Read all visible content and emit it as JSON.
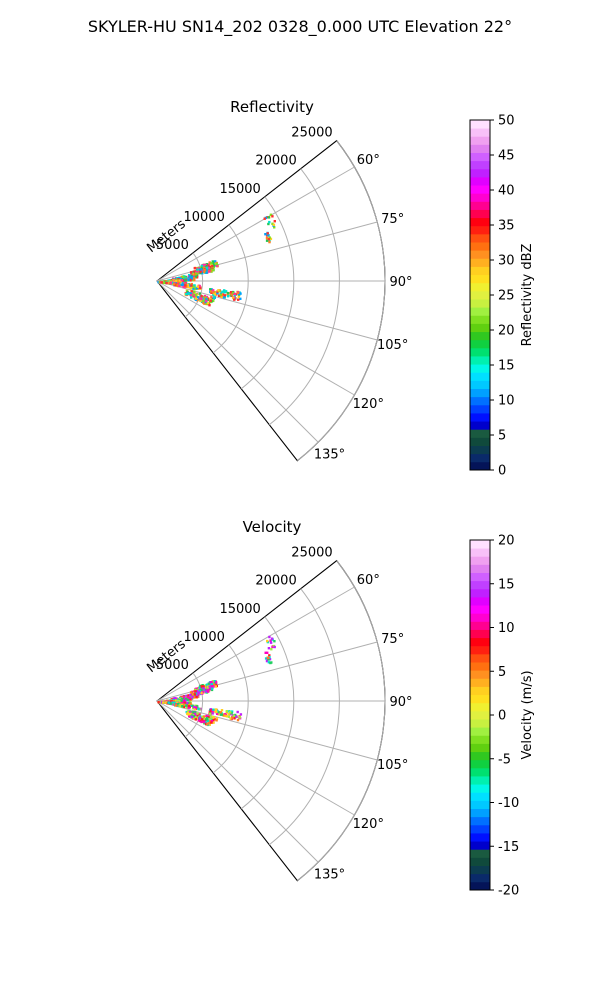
{
  "figure": {
    "suptitle": "SKYLER-HU  SN14_202  0328_0.000 UTC Elevation 22°"
  },
  "chart_data": [
    {
      "type": "polar-sector",
      "title": "Reflectivity",
      "range_label": "Meters",
      "range_ticks": [
        5000,
        10000,
        15000,
        20000,
        25000
      ],
      "range_max": 25000,
      "azimuth_ticks": [
        "60°",
        "75°",
        "90°",
        "105°",
        "120°",
        "135°"
      ],
      "azimuth_range_deg": [
        52,
        142
      ],
      "grid": true,
      "colorbar": {
        "label": "Reflectivity dBZ",
        "min": 0,
        "max": 50,
        "ticks": [
          "0",
          "5",
          "10",
          "15",
          "20",
          "25",
          "30",
          "35",
          "40",
          "45",
          "50"
        ],
        "colors": [
          "#041458",
          "#0a2a6a",
          "#0c3c50",
          "#104a3c",
          "#1a5a40",
          "#0000cc",
          "#0010ff",
          "#0040ff",
          "#0070ff",
          "#00a0ff",
          "#00c8ff",
          "#00e0ff",
          "#00f8e8",
          "#00f0b0",
          "#00e070",
          "#10d040",
          "#30c820",
          "#60d010",
          "#80e020",
          "#a0f040",
          "#c8f040",
          "#e0f040",
          "#f0f030",
          "#ffe020",
          "#ffd020",
          "#ffb020",
          "#ff9020",
          "#ff7010",
          "#ff5010",
          "#ff2010",
          "#ff0010",
          "#ff0050",
          "#ff0090",
          "#ff00d0",
          "#ff00ff",
          "#e000ff",
          "#c020ff",
          "#c040ff",
          "#d060ff",
          "#e080f0",
          "#f0a0f0",
          "#f8c0f8",
          "#ffe0ff"
        ]
      },
      "echo_palette": [
        "#ff3030",
        "#ffd020",
        "#80e020",
        "#20c850",
        "#00e0d0",
        "#00a0ff",
        "#ff8020",
        "#ff30a0"
      ]
    },
    {
      "type": "polar-sector",
      "title": "Velocity",
      "range_label": "Meters",
      "range_ticks": [
        5000,
        10000,
        15000,
        20000,
        25000
      ],
      "range_max": 25000,
      "azimuth_ticks": [
        "60°",
        "75°",
        "90°",
        "105°",
        "120°",
        "135°"
      ],
      "azimuth_range_deg": [
        52,
        142
      ],
      "grid": true,
      "colorbar": {
        "label": "Velocity (m/s)",
        "min": -20,
        "max": 20,
        "ticks": [
          "-20",
          "-15",
          "-10",
          "-5",
          "0",
          "5",
          "10",
          "15",
          "20"
        ],
        "colors": [
          "#041458",
          "#0a2a6a",
          "#0c3c50",
          "#104a3c",
          "#1a5a40",
          "#0000cc",
          "#0010ff",
          "#0040ff",
          "#0070ff",
          "#00a0ff",
          "#00c8ff",
          "#00e0ff",
          "#00f8e8",
          "#00f0b0",
          "#00e070",
          "#10d040",
          "#30c820",
          "#60d010",
          "#80e020",
          "#a0f040",
          "#c8f040",
          "#e0f040",
          "#f0f030",
          "#ffe020",
          "#ffd020",
          "#ffb020",
          "#ff9020",
          "#ff7010",
          "#ff5010",
          "#ff2010",
          "#ff0010",
          "#ff0050",
          "#ff0090",
          "#ff00d0",
          "#ff00ff",
          "#e000ff",
          "#c020ff",
          "#c040ff",
          "#d060ff",
          "#e080f0",
          "#f0a0f0",
          "#f8c0f8",
          "#ffe0ff"
        ]
      },
      "echo_palette": [
        "#ff00c0",
        "#ff2020",
        "#ffd020",
        "#a0f040",
        "#20d060",
        "#00e0d0",
        "#ff8020",
        "#c020ff"
      ]
    }
  ]
}
